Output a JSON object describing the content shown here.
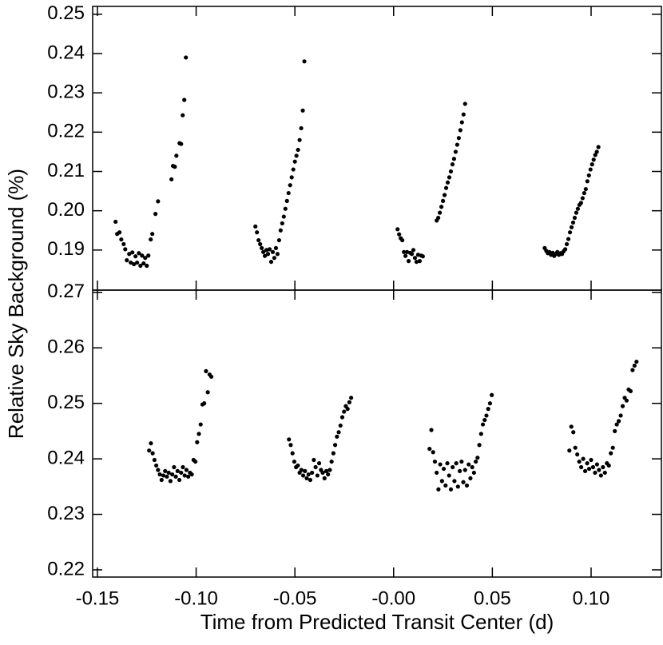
{
  "chart_data": [
    {
      "type": "scatter",
      "ylabel": "Relative Sky Background (%)",
      "xlim": [
        -0.1524,
        0.1356
      ],
      "xticks": [
        -0.15,
        -0.1,
        -0.05,
        0,
        0.05,
        0.1
      ],
      "ylim": [
        0.1798,
        0.252
      ],
      "yticks": [
        0.19,
        {
          "value": 0.2,
          "label": "0.20"
        },
        0.21,
        0.22,
        0.23,
        0.24,
        0.25
      ],
      "color": "#000000",
      "x": [
        -0.1408,
        -0.14,
        -0.1388,
        -0.1379,
        -0.1367,
        -0.1359,
        -0.1351,
        -0.1339,
        -0.1331,
        -0.1323,
        -0.1315,
        -0.1307,
        -0.1299,
        -0.129,
        -0.1282,
        -0.1274,
        -0.1266,
        -0.1258,
        -0.125,
        -0.1242,
        -0.123,
        -0.1222,
        -0.1206,
        -0.1193,
        -0.1125,
        -0.1117,
        -0.1108,
        -0.11,
        -0.1084,
        -0.1076,
        -0.1068,
        -0.106,
        -0.1052,
        -0.07,
        -0.0692,
        -0.0684,
        -0.0676,
        -0.0668,
        -0.066,
        -0.0652,
        -0.0644,
        -0.0636,
        -0.0628,
        -0.062,
        -0.0612,
        -0.0604,
        -0.0596,
        -0.0588,
        -0.058,
        -0.0572,
        -0.0564,
        -0.0556,
        -0.0548,
        -0.054,
        -0.0532,
        -0.0524,
        -0.0516,
        -0.0508,
        -0.05,
        -0.0492,
        -0.0484,
        -0.0476,
        -0.0468,
        -0.046,
        -0.0452,
        0.002,
        0.0028,
        0.0036,
        0.0044,
        0.0052,
        0.006,
        0.0068,
        0.0076,
        0.0084,
        0.0092,
        0.01,
        0.0108,
        0.0116,
        0.0124,
        0.0132,
        0.014,
        0.0148,
        0.0218,
        0.0226,
        0.0234,
        0.0242,
        0.025,
        0.0258,
        0.0266,
        0.0274,
        0.0282,
        0.029,
        0.0298,
        0.0306,
        0.0314,
        0.0322,
        0.033,
        0.0338,
        0.0346,
        0.0354,
        0.0362,
        0.0765,
        0.0773,
        0.0781,
        0.0789,
        0.0797,
        0.0805,
        0.0813,
        0.0821,
        0.0829,
        0.0837,
        0.0845,
        0.0853,
        0.0861,
        0.0869,
        0.0877,
        0.0885,
        0.0893,
        0.0901,
        0.0909,
        0.0917,
        0.0925,
        0.0933,
        0.0941,
        0.0949,
        0.0957,
        0.0965,
        0.0973,
        0.0981,
        0.0989,
        0.0997,
        0.1005,
        0.1013,
        0.1021,
        0.1029,
        0.1037
      ],
      "values": [
        0.1972,
        0.1941,
        0.1945,
        0.1927,
        0.1915,
        0.1902,
        0.1874,
        0.189,
        0.1868,
        0.1894,
        0.1864,
        0.1884,
        0.1868,
        0.1892,
        0.186,
        0.1886,
        0.1866,
        0.188,
        0.186,
        0.1886,
        0.1927,
        0.1941,
        0.1992,
        0.2024,
        0.208,
        0.2114,
        0.2112,
        0.214,
        0.2172,
        0.217,
        0.2243,
        0.2282,
        0.239,
        0.196,
        0.1945,
        0.1925,
        0.1915,
        0.1905,
        0.1895,
        0.1885,
        0.19,
        0.189,
        0.1902,
        0.187,
        0.1895,
        0.188,
        0.1905,
        0.189,
        0.1925,
        0.195,
        0.1968,
        0.1985,
        0.2005,
        0.2025,
        0.2045,
        0.2065,
        0.2085,
        0.2105,
        0.2125,
        0.214,
        0.2155,
        0.218,
        0.221,
        0.2255,
        0.238,
        0.1953,
        0.194,
        0.193,
        0.1925,
        0.1895,
        0.1885,
        0.1895,
        0.1872,
        0.1893,
        0.189,
        0.19,
        0.188,
        0.187,
        0.1888,
        0.1872,
        0.1886,
        0.1884,
        0.1975,
        0.1982,
        0.1995,
        0.201,
        0.2025,
        0.204,
        0.2058,
        0.2072,
        0.2085,
        0.21,
        0.2118,
        0.2132,
        0.215,
        0.2168,
        0.2185,
        0.2205,
        0.2225,
        0.2245,
        0.2272,
        0.1905,
        0.1898,
        0.1892,
        0.1895,
        0.1888,
        0.1893,
        0.1885,
        0.189,
        0.1895,
        0.1888,
        0.1892,
        0.189,
        0.1897,
        0.1902,
        0.1915,
        0.1928,
        0.1945,
        0.1958,
        0.197,
        0.1982,
        0.1995,
        0.2005,
        0.2015,
        0.202,
        0.2032,
        0.2045,
        0.2055,
        0.2075,
        0.209,
        0.2105,
        0.2118,
        0.213,
        0.2142,
        0.215,
        0.2162
      ]
    },
    {
      "type": "scatter",
      "xlabel": "Time from Predicted Transit Center (d)",
      "xlim": [
        -0.1524,
        0.1356
      ],
      "xticks": [
        -0.15,
        {
          "value": -0.1,
          "label": "-0.10"
        },
        -0.05,
        {
          "value": 0,
          "label": "-0.00"
        },
        0.05,
        {
          "value": 0.1,
          "label": "0.10"
        }
      ],
      "ylim": [
        0.2187,
        0.2704
      ],
      "yticks": [
        0.22,
        0.23,
        0.24,
        0.25,
        0.26,
        0.27
      ],
      "color": "#000000",
      "x": [
        -0.1238,
        -0.1229,
        -0.122,
        -0.1211,
        -0.1202,
        -0.1193,
        -0.1184,
        -0.1175,
        -0.1166,
        -0.1157,
        -0.1148,
        -0.1139,
        -0.113,
        -0.1121,
        -0.1112,
        -0.1103,
        -0.1094,
        -0.1085,
        -0.1076,
        -0.1067,
        -0.1058,
        -0.1049,
        -0.104,
        -0.1031,
        -0.1022,
        -0.1013,
        -0.1004,
        -0.0995,
        -0.0986,
        -0.0977,
        -0.0968,
        -0.0959,
        -0.095,
        -0.0941,
        -0.0932,
        -0.0923,
        -0.053,
        -0.0521,
        -0.0512,
        -0.0503,
        -0.0494,
        -0.0485,
        -0.0476,
        -0.0467,
        -0.0458,
        -0.0449,
        -0.044,
        -0.0431,
        -0.0422,
        -0.0413,
        -0.0404,
        -0.0395,
        -0.0386,
        -0.0377,
        -0.0368,
        -0.0359,
        -0.035,
        -0.0341,
        -0.0332,
        -0.0323,
        -0.0314,
        -0.0305,
        -0.0296,
        -0.0287,
        -0.0278,
        -0.0269,
        -0.026,
        -0.0251,
        -0.0242,
        -0.0233,
        -0.0224,
        -0.0215,
        0.0182,
        0.0191,
        0.02,
        0.0209,
        0.0218,
        0.0227,
        0.0236,
        0.0245,
        0.0254,
        0.0263,
        0.0272,
        0.0281,
        0.029,
        0.0299,
        0.0308,
        0.0317,
        0.0326,
        0.0335,
        0.0344,
        0.0353,
        0.0362,
        0.0371,
        0.038,
        0.0389,
        0.0398,
        0.0407,
        0.0416,
        0.0425,
        0.0434,
        0.0443,
        0.0452,
        0.0461,
        0.047,
        0.0479,
        0.0488,
        0.0497,
        0.089,
        0.09,
        0.091,
        0.092,
        0.093,
        0.094,
        0.095,
        0.096,
        0.097,
        0.098,
        0.099,
        0.1,
        0.101,
        0.102,
        0.103,
        0.104,
        0.105,
        0.106,
        0.107,
        0.108,
        0.109,
        0.11,
        0.111,
        0.112,
        0.113,
        0.114,
        0.115,
        0.116,
        0.117,
        0.118,
        0.119,
        0.12,
        0.121,
        0.122,
        0.123
      ],
      "values": [
        0.2415,
        0.2428,
        0.241,
        0.2398,
        0.2388,
        0.238,
        0.2372,
        0.2362,
        0.237,
        0.2378,
        0.2368,
        0.2375,
        0.236,
        0.2372,
        0.2385,
        0.2368,
        0.2378,
        0.2362,
        0.2375,
        0.2385,
        0.237,
        0.238,
        0.2368,
        0.2375,
        0.2372,
        0.2398,
        0.2395,
        0.243,
        0.2445,
        0.2462,
        0.2498,
        0.25,
        0.2558,
        0.252,
        0.2552,
        0.2548,
        0.2435,
        0.2425,
        0.241,
        0.2395,
        0.2385,
        0.2388,
        0.2375,
        0.238,
        0.237,
        0.2378,
        0.2365,
        0.2372,
        0.2362,
        0.2375,
        0.2398,
        0.2385,
        0.237,
        0.2392,
        0.238,
        0.2375,
        0.2365,
        0.2378,
        0.2372,
        0.238,
        0.2395,
        0.241,
        0.2425,
        0.244,
        0.2448,
        0.246,
        0.2475,
        0.2485,
        0.2495,
        0.249,
        0.2502,
        0.251,
        0.2418,
        0.2452,
        0.2412,
        0.2395,
        0.2375,
        0.2345,
        0.239,
        0.236,
        0.2382,
        0.2352,
        0.2392,
        0.237,
        0.2345,
        0.2385,
        0.236,
        0.2392,
        0.235,
        0.2378,
        0.2395,
        0.2358,
        0.238,
        0.2352,
        0.239,
        0.2365,
        0.2385,
        0.2375,
        0.2395,
        0.2402,
        0.2425,
        0.2445,
        0.2462,
        0.247,
        0.2478,
        0.249,
        0.25,
        0.2515,
        0.2415,
        0.2458,
        0.2448,
        0.242,
        0.2408,
        0.2395,
        0.2385,
        0.24,
        0.2378,
        0.2392,
        0.2382,
        0.2398,
        0.2385,
        0.2375,
        0.239,
        0.238,
        0.237,
        0.2385,
        0.2375,
        0.2392,
        0.2388,
        0.241,
        0.242,
        0.245,
        0.2462,
        0.2468,
        0.2478,
        0.2495,
        0.251,
        0.2505,
        0.2525,
        0.2522,
        0.256,
        0.2568,
        0.2575
      ]
    }
  ]
}
